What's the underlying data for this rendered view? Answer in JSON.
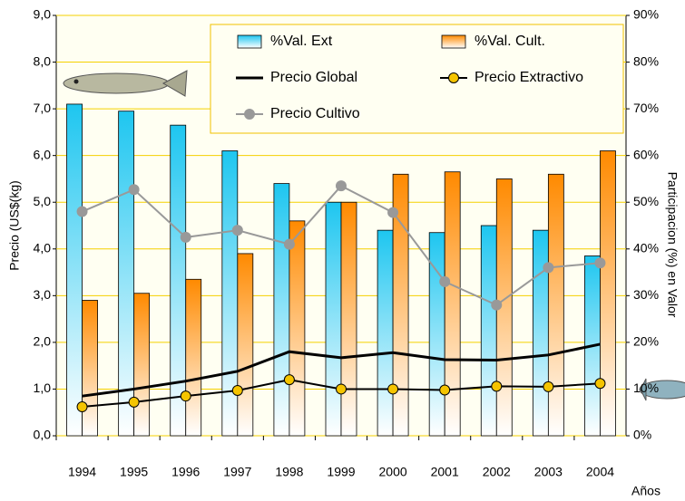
{
  "chart_data": {
    "type": "bar",
    "y_label": "Precio (US$(kg)",
    "y2_label": "Participacion (%) en Valor",
    "x_label": "Años",
    "categories": [
      "1994",
      "1995",
      "1996",
      "1997",
      "1998",
      "1999",
      "2000",
      "2001",
      "2002",
      "2003",
      "2004"
    ],
    "series": [
      {
        "name": "%Val. Ext",
        "type": "bar",
        "axis": "y2",
        "color": "#1ec6f0",
        "values": [
          71,
          69.5,
          66.5,
          61,
          54,
          50,
          44,
          43.5,
          45,
          44,
          38.5
        ]
      },
      {
        "name": "%Val. Cult.",
        "type": "bar",
        "axis": "y2",
        "color": "#ff8a00",
        "values": [
          29,
          30.5,
          33.5,
          39,
          46,
          50,
          56,
          56.5,
          55,
          56,
          61
        ]
      },
      {
        "name": "Precio Global",
        "type": "line",
        "color": "#000000",
        "values": [
          0.85,
          1.0,
          1.17,
          1.38,
          1.8,
          1.67,
          1.78,
          1.63,
          1.62,
          1.73,
          1.96
        ]
      },
      {
        "name": "Precio Extractivo",
        "type": "line",
        "color": "#f5c400",
        "values": [
          0.62,
          0.72,
          0.85,
          0.97,
          1.2,
          1.0,
          1.0,
          0.98,
          1.06,
          1.05,
          1.12
        ]
      },
      {
        "name": "Precio Cultivo",
        "type": "line",
        "color": "#999999",
        "values": [
          4.8,
          5.27,
          4.25,
          4.4,
          4.1,
          5.35,
          4.78,
          3.3,
          2.8,
          3.6,
          3.7
        ]
      }
    ],
    "ylim": [
      0,
      9
    ],
    "yticks": [
      {
        "value": 0,
        "label": "0,0"
      },
      {
        "value": 1,
        "label": "1,0"
      },
      {
        "value": 2,
        "label": "2,0"
      },
      {
        "value": 3,
        "label": "3,0"
      },
      {
        "value": 4,
        "label": "4,0"
      },
      {
        "value": 5,
        "label": "5,0"
      },
      {
        "value": 6,
        "label": "6,0"
      },
      {
        "value": 7,
        "label": "7,0"
      },
      {
        "value": 8,
        "label": "8,0"
      },
      {
        "value": 9,
        "label": "9,0"
      }
    ],
    "y2lim": [
      0,
      90
    ],
    "y2ticks": [
      {
        "value": 0,
        "label": "0%"
      },
      {
        "value": 10,
        "label": "10%"
      },
      {
        "value": 20,
        "label": "20%"
      },
      {
        "value": 30,
        "label": "30%"
      },
      {
        "value": 40,
        "label": "40%"
      },
      {
        "value": 50,
        "label": "50%"
      },
      {
        "value": 60,
        "label": "60%"
      },
      {
        "value": 70,
        "label": "70%"
      },
      {
        "value": 80,
        "label": "80%"
      },
      {
        "value": 90,
        "label": "90%"
      }
    ],
    "grid": true
  }
}
